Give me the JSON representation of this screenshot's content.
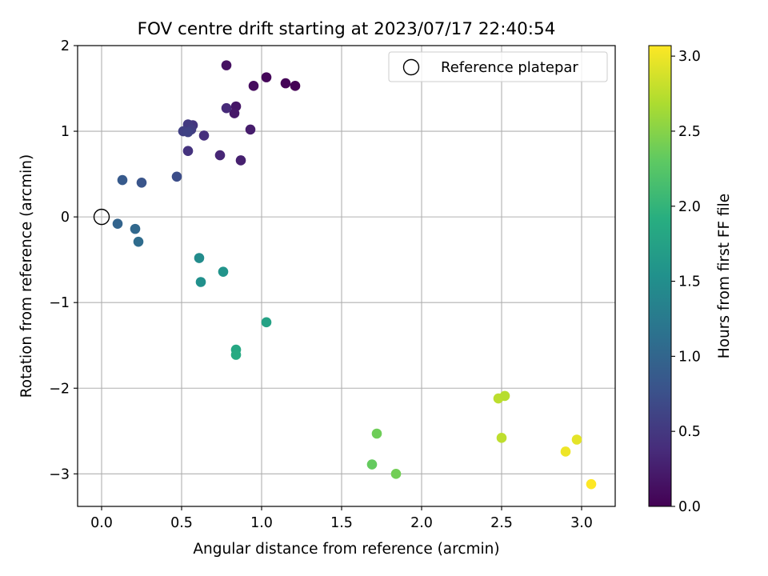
{
  "chart_data": {
    "type": "scatter",
    "title": "FOV centre drift starting at 2023/07/17 22:40:54",
    "xlabel": "Angular distance from reference (arcmin)",
    "ylabel": "Rotation from reference (arcmin)",
    "xlim": [
      -0.15,
      3.21
    ],
    "ylim": [
      -3.38,
      2.0
    ],
    "x_ticks": [
      {
        "value": 0.0,
        "label": "0.0"
      },
      {
        "value": 0.5,
        "label": "0.5"
      },
      {
        "value": 1.0,
        "label": "1.0"
      },
      {
        "value": 1.5,
        "label": "1.5"
      },
      {
        "value": 2.0,
        "label": "2.0"
      },
      {
        "value": 2.5,
        "label": "2.5"
      },
      {
        "value": 3.0,
        "label": "3.0"
      }
    ],
    "y_ticks": [
      {
        "value": -3,
        "label": "−3"
      },
      {
        "value": -2,
        "label": "−2"
      },
      {
        "value": -1,
        "label": "−1"
      },
      {
        "value": 0,
        "label": "0"
      },
      {
        "value": 1,
        "label": "1"
      },
      {
        "value": 2,
        "label": "2"
      }
    ],
    "grid": true,
    "legend": {
      "placement": "top-right",
      "entries": [
        {
          "label": "Reference platepar",
          "marker": "open-circle"
        }
      ]
    },
    "reference_point": {
      "x": 0.0,
      "y": 0.0
    },
    "colorbar": {
      "label": "Hours from first FF file",
      "colormap": "viridis",
      "range": [
        0.0,
        3.07
      ],
      "ticks": [
        {
          "value": 0.0,
          "label": "0.0"
        },
        {
          "value": 0.5,
          "label": "0.5"
        },
        {
          "value": 1.0,
          "label": "1.0"
        },
        {
          "value": 1.5,
          "label": "1.5"
        },
        {
          "value": 2.0,
          "label": "2.0"
        },
        {
          "value": 2.5,
          "label": "2.5"
        },
        {
          "value": 3.0,
          "label": "3.0"
        }
      ]
    },
    "points": [
      {
        "x": 1.21,
        "y": 1.53,
        "c": 0.0
      },
      {
        "x": 1.15,
        "y": 1.56,
        "c": 0.03
      },
      {
        "x": 1.03,
        "y": 1.63,
        "c": 0.05
      },
      {
        "x": 0.95,
        "y": 1.53,
        "c": 0.1
      },
      {
        "x": 0.78,
        "y": 1.77,
        "c": 0.13
      },
      {
        "x": 0.84,
        "y": 1.29,
        "c": 0.18
      },
      {
        "x": 0.83,
        "y": 1.21,
        "c": 0.2
      },
      {
        "x": 0.93,
        "y": 1.02,
        "c": 0.24
      },
      {
        "x": 0.87,
        "y": 0.66,
        "c": 0.27
      },
      {
        "x": 0.74,
        "y": 0.72,
        "c": 0.33
      },
      {
        "x": 0.78,
        "y": 1.27,
        "c": 0.36
      },
      {
        "x": 0.64,
        "y": 0.95,
        "c": 0.4
      },
      {
        "x": 0.54,
        "y": 0.77,
        "c": 0.45
      },
      {
        "x": 0.57,
        "y": 1.07,
        "c": 0.48
      },
      {
        "x": 0.54,
        "y": 1.08,
        "c": 0.52
      },
      {
        "x": 0.56,
        "y": 1.02,
        "c": 0.55
      },
      {
        "x": 0.51,
        "y": 1.0,
        "c": 0.58
      },
      {
        "x": 0.54,
        "y": 0.99,
        "c": 0.6
      },
      {
        "x": 0.47,
        "y": 0.47,
        "c": 0.72
      },
      {
        "x": 0.25,
        "y": 0.4,
        "c": 0.8
      },
      {
        "x": 0.13,
        "y": 0.43,
        "c": 0.86
      },
      {
        "x": 0.1,
        "y": -0.08,
        "c": 0.98
      },
      {
        "x": 0.21,
        "y": -0.14,
        "c": 1.03
      },
      {
        "x": 0.23,
        "y": -0.29,
        "c": 1.08
      },
      {
        "x": 0.61,
        "y": -0.48,
        "c": 1.47
      },
      {
        "x": 0.62,
        "y": -0.76,
        "c": 1.52
      },
      {
        "x": 0.76,
        "y": -0.64,
        "c": 1.57
      },
      {
        "x": 1.03,
        "y": -1.23,
        "c": 1.76
      },
      {
        "x": 0.84,
        "y": -1.55,
        "c": 1.82
      },
      {
        "x": 0.84,
        "y": -1.61,
        "c": 1.86
      },
      {
        "x": 1.72,
        "y": -2.53,
        "c": 2.38
      },
      {
        "x": 1.69,
        "y": -2.89,
        "c": 2.33
      },
      {
        "x": 1.84,
        "y": -3.0,
        "c": 2.4
      },
      {
        "x": 2.48,
        "y": -2.12,
        "c": 2.76
      },
      {
        "x": 2.52,
        "y": -2.09,
        "c": 2.73
      },
      {
        "x": 2.5,
        "y": -2.58,
        "c": 2.77
      },
      {
        "x": 2.9,
        "y": -2.74,
        "c": 3.0
      },
      {
        "x": 2.97,
        "y": -2.6,
        "c": 2.95
      },
      {
        "x": 3.06,
        "y": -3.12,
        "c": 3.07
      }
    ]
  }
}
